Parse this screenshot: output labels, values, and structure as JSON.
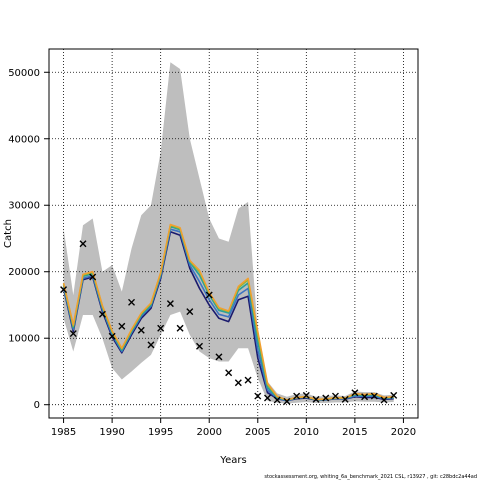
{
  "chart_data": {
    "type": "line",
    "xlabel": "Years",
    "ylabel": "Catch",
    "xlim": [
      1983.5,
      2021.5
    ],
    "ylim": [
      -2000,
      53500
    ],
    "xticks": [
      1985,
      1990,
      1995,
      2000,
      2005,
      2010,
      2015,
      2020
    ],
    "yticks": [
      0,
      10000,
      20000,
      30000,
      40000,
      50000
    ],
    "ytick_labels": [
      "0",
      "10000",
      "20000",
      "30000",
      "40000",
      "50000"
    ],
    "grid": true,
    "footnote": "stockassessment.org, whiting_6a_benchmark_2021 CSL, r13927 , git: c28bdc2a44ad",
    "band": {
      "x": [
        1985,
        1986,
        1987,
        1988,
        1989,
        1990,
        1991,
        1992,
        1993,
        1994,
        1995,
        1996,
        1997,
        1998,
        1999,
        2000,
        2001,
        2002,
        2003,
        2004,
        2005,
        2006,
        2007,
        2008,
        2009,
        2010,
        2011,
        2012,
        2013,
        2014,
        2015,
        2016,
        2017,
        2018,
        2019
      ],
      "upper": [
        26500,
        16500,
        27000,
        28000,
        20000,
        21000,
        17000,
        23500,
        28500,
        30000,
        38000,
        51500,
        50500,
        40000,
        34000,
        28000,
        25000,
        24500,
        29500,
        30500,
        11000,
        3500,
        1700,
        1200,
        1600,
        1700,
        1200,
        1300,
        1400,
        1300,
        2000,
        1900,
        1900,
        1400,
        1500
      ],
      "lower": [
        13000,
        8000,
        13500,
        13500,
        10000,
        5500,
        3800,
        5000,
        6300,
        7500,
        10500,
        13500,
        14000,
        10500,
        8000,
        7000,
        6500,
        6500,
        8500,
        8500,
        4000,
        600,
        300,
        200,
        300,
        400,
        250,
        250,
        350,
        350,
        500,
        450,
        450,
        350,
        400
      ],
      "color": "#bebebe"
    },
    "series": [
      {
        "x": [
          1985,
          1986,
          1987,
          1988,
          1989,
          1990,
          1991,
          1992,
          1993,
          1994,
          1995,
          1996,
          1997,
          1998,
          1999,
          2000,
          2001,
          2002,
          2003,
          2004,
          2005,
          2006,
          2007,
          2008,
          2009,
          2010,
          2011,
          2012,
          2013,
          2014,
          2015,
          2016,
          2017,
          2018,
          2019
        ],
        "values": [
          17500,
          11000,
          18800,
          19200,
          14000,
          10200,
          7800,
          10500,
          13000,
          14500,
          19000,
          26000,
          25500,
          20500,
          17500,
          15000,
          13000,
          12500,
          15800,
          16300,
          7000,
          1800,
          900,
          600,
          900,
          1000,
          700,
          700,
          900,
          850,
          1200,
          1100,
          1100,
          800,
          900
        ],
        "color": "#1a1a6e"
      },
      {
        "x": [
          1985,
          1986,
          1987,
          1988,
          1989,
          1990,
          1991,
          1992,
          1993,
          1994,
          1995,
          1996,
          1997,
          1998,
          1999,
          2000,
          2001,
          2002,
          2003,
          2004,
          2005,
          2006,
          2007,
          2008,
          2009,
          2010,
          2011,
          2012,
          2013,
          2014,
          2015,
          2016,
          2017,
          2018,
          2019
        ],
        "values": [
          17700,
          11300,
          19000,
          19400,
          14300,
          10500,
          8000,
          10800,
          13300,
          14800,
          19300,
          26400,
          26000,
          21000,
          18500,
          15800,
          13600,
          13200,
          16500,
          17500,
          8200,
          2200,
          1000,
          600,
          1000,
          1100,
          700,
          750,
          950,
          900,
          1300,
          1250,
          1300,
          900,
          1000
        ],
        "color": "#3d73c2"
      },
      {
        "x": [
          1985,
          1986,
          1987,
          1988,
          1989,
          1990,
          1991,
          1992,
          1993,
          1994,
          1995,
          1996,
          1997,
          1998,
          1999,
          2000,
          2001,
          2002,
          2003,
          2004,
          2005,
          2006,
          2007,
          2008,
          2009,
          2010,
          2011,
          2012,
          2013,
          2014,
          2015,
          2016,
          2017,
          2018,
          2019
        ],
        "values": [
          18000,
          11600,
          19300,
          19700,
          14600,
          10800,
          8200,
          11000,
          13500,
          15000,
          19600,
          26800,
          26300,
          21400,
          19500,
          16500,
          14200,
          13800,
          17200,
          18300,
          9500,
          2600,
          1100,
          650,
          1050,
          1150,
          750,
          800,
          1000,
          950,
          1500,
          1400,
          1500,
          1000,
          1100
        ],
        "color": "#2aa198"
      },
      {
        "x": [
          1985,
          1986,
          1987,
          1988,
          1989,
          1990,
          1991,
          1992,
          1993,
          1994,
          1995,
          1996,
          1997,
          1998,
          1999,
          2000,
          2001,
          2002,
          2003,
          2004,
          2005,
          2006,
          2007,
          2008,
          2009,
          2010,
          2011,
          2012,
          2013,
          2014,
          2015,
          2016,
          2017,
          2018,
          2019
        ],
        "values": [
          18200,
          11800,
          19500,
          19900,
          14800,
          11000,
          8400,
          11200,
          13700,
          15200,
          19800,
          27000,
          26500,
          21600,
          20000,
          16800,
          14500,
          14000,
          17600,
          18800,
          10500,
          3000,
          1200,
          700,
          1100,
          1200,
          800,
          850,
          1050,
          1000,
          1600,
          1500,
          1600,
          1050,
          1150
        ],
        "color": "#8ab832"
      },
      {
        "x": [
          1985,
          1986,
          1987,
          1988,
          1989,
          1990,
          1991,
          1992,
          1993,
          1994,
          1995,
          1996,
          1997,
          1998,
          1999,
          2000,
          2001,
          2002,
          2003,
          2004,
          2005,
          2006,
          2007,
          2008,
          2009,
          2010,
          2011,
          2012,
          2013,
          2014,
          2015,
          2016,
          2017,
          2018,
          2019
        ],
        "values": [
          18300,
          12000,
          19600,
          20000,
          14900,
          11100,
          8500,
          11300,
          13800,
          15300,
          19900,
          27100,
          26600,
          21700,
          20200,
          16900,
          14600,
          14100,
          17800,
          19000,
          11000,
          3200,
          1250,
          700,
          1100,
          1200,
          800,
          850,
          1050,
          1000,
          1650,
          1550,
          1650,
          1100,
          1200
        ],
        "color": "#f0a030"
      }
    ],
    "observations": {
      "x": [
        1985,
        1986,
        1987,
        1988,
        1989,
        1990,
        1991,
        1992,
        1993,
        1994,
        1995,
        1996,
        1997,
        1998,
        1999,
        2000,
        2001,
        2002,
        2003,
        2004,
        2005,
        2006,
        2007,
        2008,
        2009,
        2010,
        2011,
        2012,
        2013,
        2014,
        2015,
        2016,
        2017,
        2018,
        2019
      ],
      "values": [
        17300,
        10700,
        24200,
        19200,
        13600,
        10300,
        11800,
        15400,
        11200,
        9000,
        11500,
        15200,
        11500,
        14000,
        8800,
        16500,
        7200,
        4800,
        3300,
        3700,
        1300,
        1000,
        700,
        500,
        1300,
        1400,
        800,
        1000,
        1300,
        800,
        1800,
        1200,
        1300,
        700,
        1400
      ],
      "marker": "x",
      "color": "#000000"
    }
  }
}
